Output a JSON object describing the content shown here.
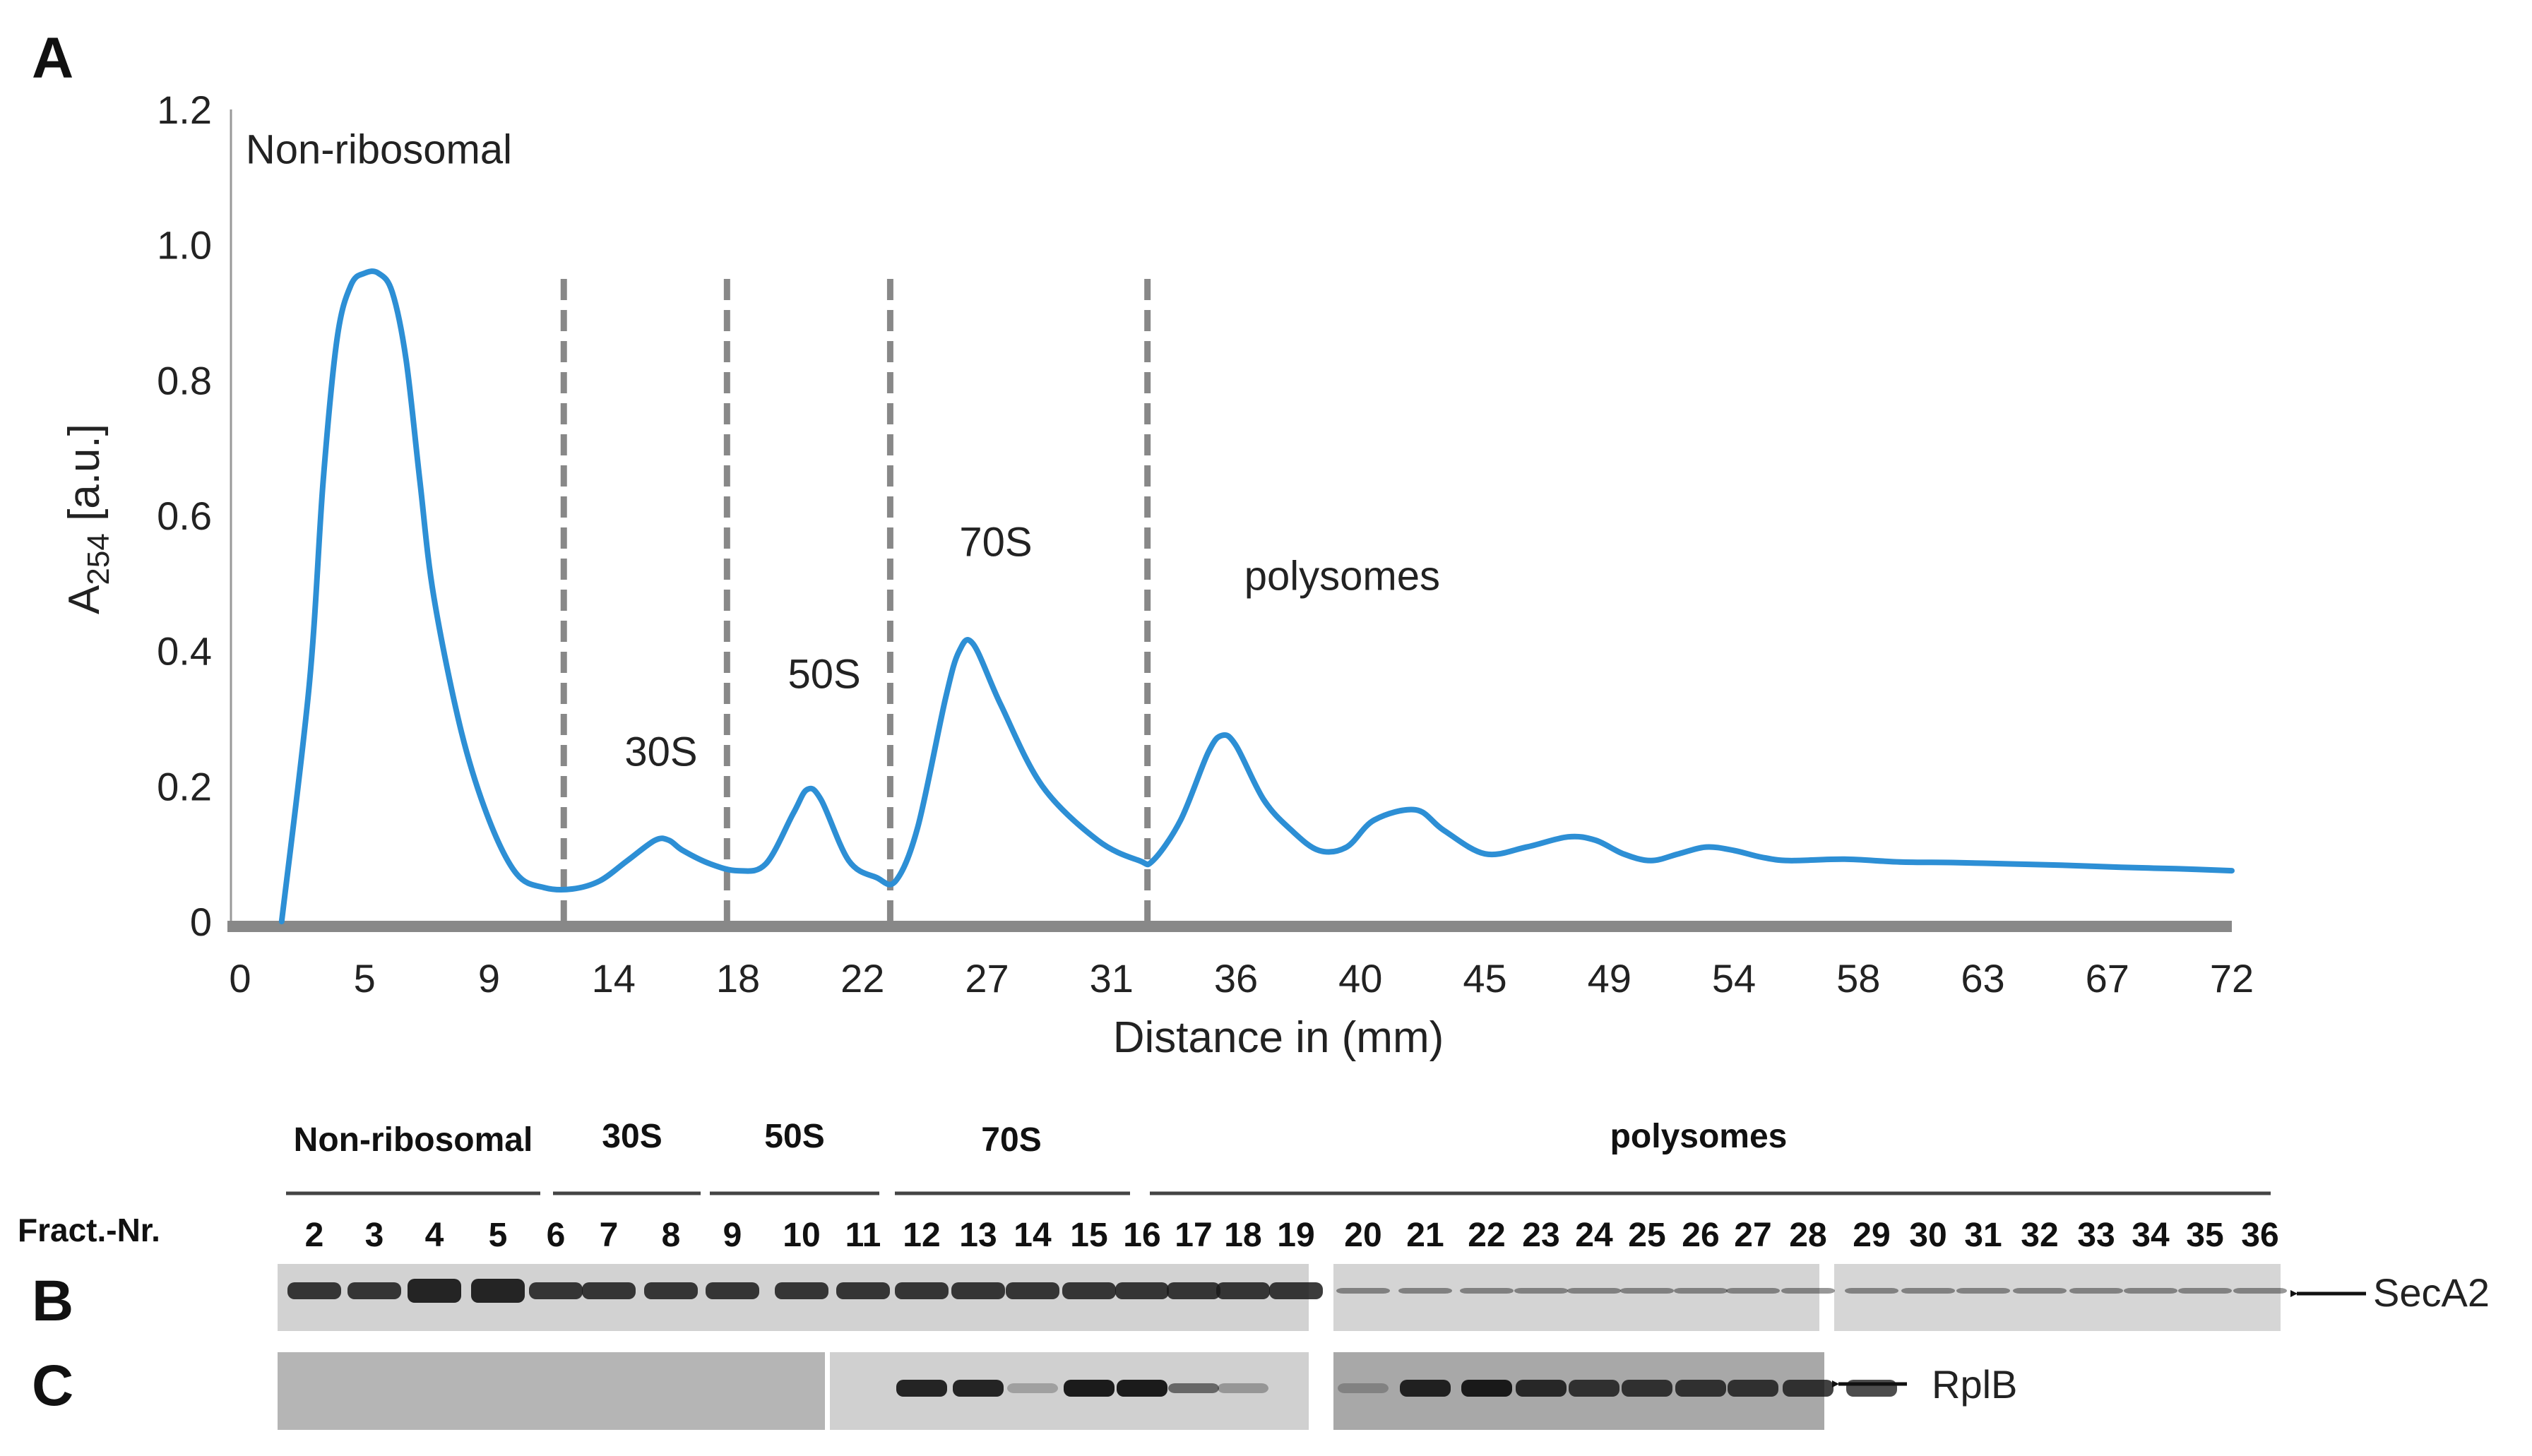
{
  "panels": {
    "a": "A",
    "b": "B",
    "c": "C"
  },
  "chart_data": {
    "type": "line",
    "title": "",
    "xlabel": "Distance in (mm)",
    "ylabel_main": "A",
    "ylabel_sub": "254",
    "ylabel_unit": " [a.u.]",
    "x_tick_labels": [
      "0",
      "5",
      "9",
      "14",
      "18",
      "22",
      "27",
      "31",
      "36",
      "40",
      "45",
      "49",
      "54",
      "58",
      "63",
      "67",
      "72"
    ],
    "y_tick_labels": [
      "0",
      "0.2",
      "0.4",
      "0.6",
      "0.8",
      "1.0",
      "1.2"
    ],
    "xlim": [
      0,
      72
    ],
    "ylim": [
      0,
      1.2
    ],
    "grid": false,
    "line_color": "#2d8fd5",
    "divider_color": "#888888",
    "dividers_x": [
      11.7,
      17.6,
      23.5,
      32.8
    ],
    "region_labels": [
      {
        "text": "Non-ribosomal",
        "x": 0.2,
        "y": 1.12
      },
      {
        "text": "30S",
        "x": 13.9,
        "y": 0.23
      },
      {
        "text": "50S",
        "x": 19.8,
        "y": 0.345
      },
      {
        "text": "70S",
        "x": 26.0,
        "y": 0.54
      },
      {
        "text": "polysomes",
        "x": 36.3,
        "y": 0.49
      }
    ],
    "series": [
      {
        "x": [
          1.5,
          2.5,
          3.0,
          3.5,
          4.0,
          4.5,
          5.0,
          5.5,
          6.0,
          6.5,
          7.0,
          8.0,
          9.0,
          10.0,
          11.0,
          12.0,
          13.0,
          14.0,
          15.0,
          15.5,
          16.0,
          17.0,
          18.0,
          19.0,
          20.0,
          20.5,
          21.0,
          22.0,
          23.0,
          23.7,
          24.5,
          25.5,
          26.0,
          26.5,
          27.5,
          29.0,
          31.0,
          32.5,
          33.0,
          34.0,
          35.0,
          35.5,
          36.0,
          37.0,
          38.0,
          39.0,
          40.0,
          41.0,
          42.5,
          43.5,
          45.0,
          46.5,
          48.0,
          49.0,
          50.0,
          51.0,
          52.0,
          53.0,
          54.0,
          55.0,
          56.0,
          58.0,
          60.0,
          62.0,
          64.0,
          66.0,
          68.0,
          70.0,
          72.0
        ],
        "y": [
          0.0,
          0.35,
          0.65,
          0.86,
          0.94,
          0.958,
          0.958,
          0.93,
          0.83,
          0.65,
          0.48,
          0.28,
          0.15,
          0.07,
          0.05,
          0.048,
          0.06,
          0.09,
          0.12,
          0.12,
          0.105,
          0.085,
          0.075,
          0.085,
          0.16,
          0.195,
          0.18,
          0.09,
          0.065,
          0.06,
          0.14,
          0.33,
          0.4,
          0.41,
          0.32,
          0.2,
          0.12,
          0.09,
          0.09,
          0.15,
          0.25,
          0.275,
          0.26,
          0.18,
          0.135,
          0.105,
          0.11,
          0.15,
          0.165,
          0.135,
          0.1,
          0.11,
          0.125,
          0.12,
          0.1,
          0.09,
          0.1,
          0.11,
          0.105,
          0.095,
          0.09,
          0.092,
          0.088,
          0.087,
          0.085,
          0.083,
          0.08,
          0.078,
          0.075
        ]
      }
    ]
  },
  "blot": {
    "groups": [
      "Non-ribosomal",
      "30S",
      "50S",
      "70S",
      "polysomes"
    ],
    "fract_label": "Fract.-Nr.",
    "fractions": [
      "2",
      "3",
      "4",
      "5",
      "6",
      "7",
      "8",
      "9",
      "10",
      "11",
      "12",
      "13",
      "14",
      "15",
      "16",
      "17",
      "18",
      "19",
      "20",
      "21",
      "22",
      "23",
      "24",
      "25",
      "26",
      "27",
      "28",
      "29",
      "30",
      "31",
      "32",
      "33",
      "34",
      "35",
      "36"
    ],
    "secA2_label": "SecA2",
    "rplB_label": "RplB"
  }
}
